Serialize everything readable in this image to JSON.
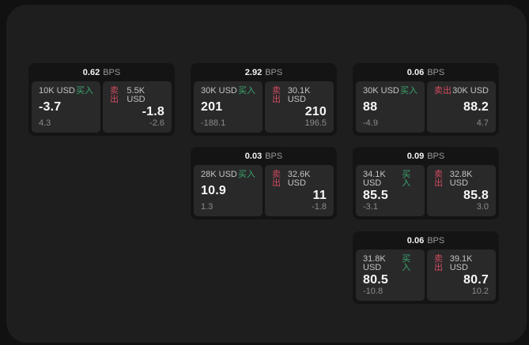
{
  "labels": {
    "bps": "BPS",
    "buy": "买入",
    "sell": "卖出"
  },
  "colors": {
    "page_bg": "#111111",
    "panel_bg": "#1e1e1f",
    "card_bg": "#141414",
    "tile_bg": "#29292a",
    "buy": "#3aa76d",
    "sell": "#d14b5e"
  },
  "cards": [
    {
      "row": 1,
      "col": 1,
      "bps": "0.62",
      "buy": {
        "amount": "10K USD",
        "price": "-3.7",
        "delta": "4.3"
      },
      "sell": {
        "amount": "5.5K USD",
        "price": "-1.8",
        "delta": "-2.6"
      }
    },
    {
      "row": 1,
      "col": 2,
      "bps": "2.92",
      "buy": {
        "amount": "30K USD",
        "price": "201",
        "delta": "-188.1"
      },
      "sell": {
        "amount": "30.1K USD",
        "price": "210",
        "delta": "196.5"
      }
    },
    {
      "row": 1,
      "col": 3,
      "bps": "0.06",
      "buy": {
        "amount": "30K USD",
        "price": "88",
        "delta": "-4.9"
      },
      "sell": {
        "amount": "30K USD",
        "price": "88.2",
        "delta": "4.7"
      }
    },
    {
      "row": 2,
      "col": 2,
      "bps": "0.03",
      "buy": {
        "amount": "28K USD",
        "price": "10.9",
        "delta": "1.3"
      },
      "sell": {
        "amount": "32.6K USD",
        "price": "11",
        "delta": "-1.8"
      }
    },
    {
      "row": 2,
      "col": 3,
      "bps": "0.09",
      "buy": {
        "amount": "34.1K USD",
        "price": "85.5",
        "delta": "-3.1"
      },
      "sell": {
        "amount": "32.8K USD",
        "price": "85.8",
        "delta": "3.0"
      }
    },
    {
      "row": 3,
      "col": 3,
      "bps": "0.06",
      "buy": {
        "amount": "31.8K USD",
        "price": "80.5",
        "delta": "-10.8"
      },
      "sell": {
        "amount": "39.1K USD",
        "price": "80.7",
        "delta": "10.2"
      }
    }
  ]
}
